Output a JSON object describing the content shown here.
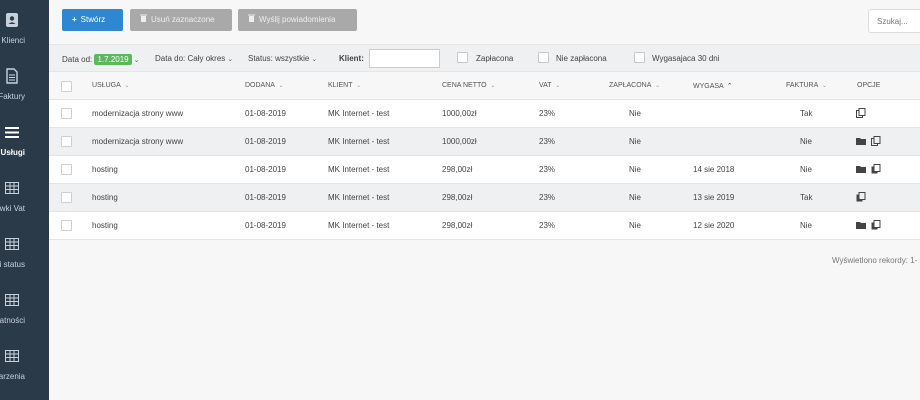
{
  "sidebar": {
    "items": [
      {
        "label": "Klienci",
        "icon": "contact-card-icon",
        "active": false
      },
      {
        "label": "Faktury",
        "icon": "document-icon",
        "active": false
      },
      {
        "label": "Usługi",
        "icon": "menu-lines-icon",
        "active": true
      },
      {
        "label": "Stawki Vat",
        "icon": "table-icon",
        "active": false
      },
      {
        "label": "Usługi status",
        "icon": "table-icon",
        "active": false
      },
      {
        "label": "Płatności",
        "icon": "table-icon",
        "active": false
      },
      {
        "label": "Zdarzenia",
        "icon": "table-icon",
        "active": false
      }
    ]
  },
  "toolbar": {
    "create_label": "Stwórz",
    "delete_label": "Usuń zaznaczone",
    "notify_label": "Wyślij powiadomienia",
    "search_placeholder": "Szukaj..."
  },
  "filters": {
    "date_from_label": "Data od:",
    "date_from_value": "1.7.2019",
    "date_to_label": "Data do:",
    "date_to_value": "Cały okres",
    "status_label": "Status:",
    "status_value": "wszystkie",
    "client_label": "Klient:",
    "client_value": "",
    "paid_label": "Zapłacona",
    "unpaid_label": "Nie zapłacona",
    "expiring_label": "Wygasajaca 30 dni"
  },
  "table": {
    "headers": {
      "service": "Usługa",
      "added": "Dodana",
      "client": "Klient",
      "net_price": "Cena netto",
      "vat": "Vat",
      "paid": "Zapłacona",
      "expires": "Wygasa",
      "invoice": "Faktura",
      "options": "Opcje"
    },
    "rows": [
      {
        "service": "modernizacja strony www",
        "added": "01-08-2019",
        "client": "MK Internet - test",
        "net_price": "1000,00zł",
        "vat": "23%",
        "paid": "Nie",
        "expires": "",
        "invoice": "Tak"
      },
      {
        "service": "modernizacja strony www",
        "added": "01-08-2019",
        "client": "MK Internet - test",
        "net_price": "1000,00zł",
        "vat": "23%",
        "paid": "Nie",
        "expires": "",
        "invoice": "Nie"
      },
      {
        "service": "hosting",
        "added": "01-08-2019",
        "client": "MK Internet - test",
        "net_price": "298,00zł",
        "vat": "23%",
        "paid": "Nie",
        "expires": "14 sie 2018",
        "invoice": "Nie"
      },
      {
        "service": "hosting",
        "added": "01-08-2019",
        "client": "MK Internet - test",
        "net_price": "298,00zł",
        "vat": "23%",
        "paid": "Nie",
        "expires": "13 sie 2019",
        "invoice": "Tak"
      },
      {
        "service": "hosting",
        "added": "01-08-2019",
        "client": "MK Internet - test",
        "net_price": "298,00zł",
        "vat": "23%",
        "paid": "Nie",
        "expires": "12 sie 2020",
        "invoice": "Nie"
      }
    ]
  },
  "footer": {
    "records_text": "Wyświetlono rekordy: 1-"
  },
  "colors": {
    "sidebar_bg": "#2b3a49",
    "primary": "#2f86d1",
    "badge": "#5cb85c"
  }
}
